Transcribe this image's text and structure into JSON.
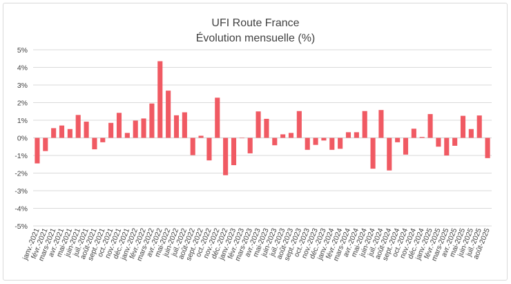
{
  "chart_data": {
    "type": "bar",
    "title": "UFI Route France",
    "subtitle": "Évolution mensuelle (%)",
    "xlabel": "",
    "ylabel": "",
    "ylim": [
      -5,
      5
    ],
    "yticks": [
      5,
      4,
      3,
      2,
      1,
      0,
      -1,
      -2,
      -3,
      -4,
      -5
    ],
    "ytick_labels": [
      "5%",
      "4%",
      "3%",
      "2%",
      "1%",
      "0%",
      "-1%",
      "-2%",
      "-3%",
      "-4%",
      "-5%"
    ],
    "grid": true,
    "bar_color": "#f05a63",
    "categories": [
      "janv.-2021",
      "févr.-2021",
      "mars-2021",
      "avr.-2021",
      "mai-2021",
      "juin-2021",
      "juil.-2021",
      "août-2021",
      "sept.-2021",
      "oct.-2021",
      "nov.-2021",
      "déc.-2021",
      "janv.-2022",
      "févr.-2022",
      "mars-2022",
      "avr.-2022",
      "mai-2022",
      "juin-2022",
      "juil.-2022",
      "août-2022",
      "sept.-2022",
      "oct.-2022",
      "nov.-2022",
      "déc.-2022",
      "janv.-2023",
      "févr.-2023",
      "mars-2023",
      "avr.-2023",
      "mai-2023",
      "juin-2023",
      "juil.-2023",
      "août-2023",
      "sept.-2023",
      "oct.-2023",
      "nov.-2023",
      "déc.-2023",
      "janv.-2024",
      "févr.-2024",
      "mars-2024",
      "avr.-2024",
      "mai-2024",
      "juin-2024",
      "juil.-2024",
      "août-2024",
      "sept.-2024",
      "oct.-2024",
      "nov.-2024",
      "déc.-2024",
      "janv.-2025",
      "févr.-2025",
      "mars-2025",
      "avr.-2025",
      "mai-2025",
      "juin-2025",
      "juil.-2025",
      "août-2025"
    ],
    "values": [
      -1.45,
      -0.75,
      0.55,
      0.7,
      0.5,
      1.3,
      0.92,
      -0.65,
      -0.25,
      0.85,
      1.42,
      0.28,
      0.98,
      1.1,
      1.95,
      4.35,
      2.68,
      1.28,
      1.45,
      -0.98,
      0.12,
      -1.28,
      2.28,
      -2.12,
      -1.55,
      0.0,
      -0.88,
      1.5,
      1.08,
      -0.42,
      0.2,
      0.28,
      1.52,
      -0.68,
      -0.4,
      -0.15,
      -0.68,
      -0.62,
      0.32,
      0.32,
      1.52,
      -1.75,
      1.58,
      -1.85,
      -0.25,
      -0.95,
      0.52,
      0.05,
      1.35,
      -0.5,
      -1.0,
      -0.45,
      1.25,
      0.5,
      1.27,
      -1.15
    ]
  },
  "colors": {
    "bars": "#f05a63",
    "grid": "#d9d9d9",
    "text": "#404040",
    "border": "#d9d9d9"
  }
}
